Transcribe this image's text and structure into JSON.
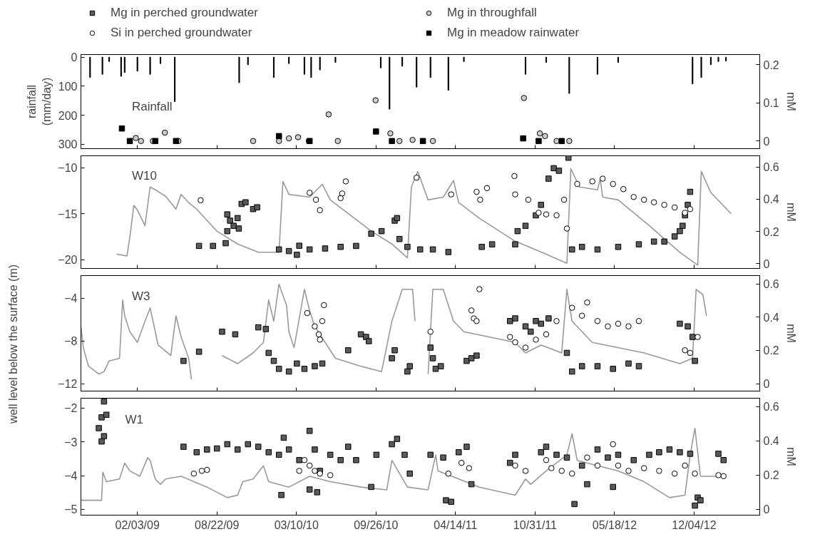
{
  "chart_data": [
    {
      "type": "bar",
      "ylabel": "rainfall\n(mm/day)",
      "y2label": "mM",
      "annotations": [
        "Rainfall"
      ],
      "legend": "top",
      "tick_labels": "y",
      "xlim": [
        "2008-09-14",
        "2013-05-18"
      ],
      "ylim": [
        315,
        -9
      ],
      "yticks": [
        0,
        100,
        200,
        300
      ],
      "y2lim": [
        -0.02,
        0.227
      ],
      "y2ticks": [
        0,
        0.1,
        0.2
      ],
      "xticks": [
        {
          "value": "2009-02-03",
          "label": null
        },
        {
          "value": "2009-08-22",
          "label": null
        },
        {
          "value": "2010-03-10",
          "label": null
        },
        {
          "value": "2010-09-26",
          "label": null
        },
        {
          "value": "2011-04-14",
          "label": null
        },
        {
          "value": "2011-10-31",
          "label": null
        },
        {
          "value": "2012-05-18",
          "label": null
        },
        {
          "value": "2012-12-04",
          "label": null
        }
      ],
      "series": [
        {
          "color": "#000000",
          "x": [
            "2008-10-07",
            "2008-11-07",
            "2008-11-24",
            "2008-12-24",
            "2009-01-02",
            "2009-02-03",
            "2009-03-07",
            "2009-04-02",
            "2009-05-08",
            "2009-10-17",
            "2009-11-08",
            "2010-01-12",
            "2010-02-19",
            "2010-03-30",
            "2010-04-16",
            "2010-05-08",
            "2010-06-16",
            "2010-10-08",
            "2010-10-30",
            "2010-12-01",
            "2011-01-06",
            "2011-02-10",
            "2011-03-27",
            "2011-05-05",
            "2011-10-07",
            "2011-11-28",
            "2012-01-25",
            "2012-04-05",
            "2012-05-27",
            "2012-11-30",
            "2012-12-22",
            "2013-01-15",
            "2013-02-03",
            "2013-02-22"
          ],
          "values": [
            70,
            59,
            15,
            66,
            53,
            48,
            59,
            22,
            153,
            88,
            26,
            70,
            22,
            59,
            70,
            44,
            18,
            37,
            179,
            31,
            103,
            70,
            114,
            15,
            59,
            18,
            125,
            59,
            18,
            92,
            70,
            26,
            15,
            13
          ]
        },
        {
          "type": "scatter",
          "name": "Mg in throughfall",
          "axis": "y2",
          "marker": "circle",
          "color": "#cccccc",
          "x": [
            "2009-01-30",
            "2009-02-12",
            "2009-03-14",
            "2009-04-13",
            "2009-05-17",
            "2009-11-21",
            "2010-01-25",
            "2010-02-19",
            "2010-03-14",
            "2010-04-10",
            "2010-05-30",
            "2010-06-22",
            "2010-09-25",
            "2010-11-01",
            "2010-11-24",
            "2010-12-27",
            "2011-02-16",
            "2011-10-03",
            "2011-11-12",
            "2011-11-25",
            "2011-12-24",
            "2012-01-25"
          ],
          "values": [
            0.008,
            0,
            0,
            0.022,
            0,
            0,
            0,
            0.007,
            0.01,
            0,
            0.07,
            0,
            0.107,
            0.02,
            0,
            0.003,
            0,
            0.113,
            0.02,
            0.013,
            0,
            0
          ]
        },
        {
          "type": "scatter",
          "name": "Mg in meadow rainwater",
          "axis": "y2",
          "marker": "square",
          "color": "#000000",
          "x": [
            "2008-12-26",
            "2009-01-15",
            "2009-03-20",
            "2009-05-11",
            "2010-01-25",
            "2010-04-12",
            "2010-09-26",
            "2010-11-05",
            "2011-01-22",
            "2011-10-01",
            "2011-11-09",
            "2012-01-06"
          ],
          "values": [
            0.033,
            0,
            0,
            0,
            0.013,
            0,
            0.025,
            0,
            0,
            0.007,
            0,
            0
          ]
        }
      ]
    },
    {
      "type": "line",
      "y2label": "mM",
      "annotations": [
        "W10"
      ],
      "legend": "top",
      "tick_labels": "y",
      "xlim": [
        "2008-09-14",
        "2013-05-18"
      ],
      "ylim": [
        -20.96,
        -8.7
      ],
      "yticks": [
        {
          "value": -20,
          "label": "−20"
        },
        {
          "value": -15,
          "label": "−15"
        },
        {
          "value": -10,
          "label": "−10"
        }
      ],
      "y2lim": [
        -0.03,
        0.67
      ],
      "y2ticks": [
        0,
        0.2,
        0.4,
        0.6
      ],
      "xticks": [
        {
          "value": "2009-02-03",
          "label": null
        },
        {
          "value": "2009-08-22",
          "label": null
        },
        {
          "value": "2010-03-10",
          "label": null
        },
        {
          "value": "2010-09-26",
          "label": null
        },
        {
          "value": "2011-04-14",
          "label": null
        },
        {
          "value": "2011-10-31",
          "label": null
        },
        {
          "value": "2012-05-18",
          "label": null
        },
        {
          "value": "2012-12-04",
          "label": null
        }
      ],
      "series": [
        {
          "color": "#999999",
          "x": [
            "2008-12-13",
            "2009-01-08",
            "2009-01-17",
            "2009-01-25",
            "2009-02-03",
            "2009-02-22",
            "2009-03-07",
            "2009-03-20",
            "2009-04-15",
            "2009-05-11",
            "2009-05-24",
            "2009-06-12",
            "2009-07-02",
            "2009-08-22",
            "2009-10-13",
            "2009-12-04",
            "2010-01-25",
            "2010-02-04",
            "2010-02-19",
            "2010-04-12",
            "2010-05-14",
            "2010-06-03",
            "2010-07-25",
            "2010-09-14",
            "2010-11-05",
            "2010-12-14",
            "2010-12-24",
            "2011-01-09",
            "2011-02-04",
            "2011-03-14",
            "2011-04-09",
            "2011-04-22",
            "2011-06-13",
            "2011-09-11",
            "2011-11-28",
            "2012-01-19",
            "2012-01-29",
            "2012-02-20",
            "2012-04-05",
            "2012-04-12",
            "2012-04-18",
            "2012-05-27",
            "2012-08-13",
            "2012-10-29",
            "2012-12-13",
            "2012-12-22",
            "2013-01-15",
            "2013-03-07"
          ],
          "values": [
            -19.4,
            -19.6,
            -16.9,
            -14.1,
            -14.6,
            -16.3,
            -12.1,
            -12.4,
            -13.1,
            -14.5,
            -12.9,
            -13.8,
            -14.5,
            -16.9,
            -18.3,
            -19.2,
            -19.2,
            -11.5,
            -12.9,
            -13.2,
            -11.8,
            -13.5,
            -15.2,
            -16.9,
            -18.3,
            -19.8,
            -12.1,
            -10.4,
            -13.5,
            -13.2,
            -11.4,
            -13.8,
            -15.5,
            -18.0,
            -19.4,
            -20.4,
            -10.1,
            -12.1,
            -12.4,
            -11.2,
            -13.2,
            -13.5,
            -16.3,
            -19.2,
            -20.6,
            -10.4,
            -12.7,
            -15.0
          ]
        },
        {
          "type": "scatter",
          "name": "Mg in perched groundwater",
          "axis": "y2",
          "marker": "square",
          "color": "#5a5a5a",
          "x": [
            "2009-07-08",
            "2009-08-12",
            "2009-09-13",
            "2009-09-17",
            "2009-09-17",
            "2009-09-24",
            "2009-10-03",
            "2009-10-13",
            "2009-10-16",
            "2009-10-23",
            "2009-11-02",
            "2009-11-21",
            "2009-12-01",
            "2010-01-25",
            "2010-02-19",
            "2010-03-11",
            "2010-03-17",
            "2010-04-12",
            "2010-05-21",
            "2010-06-29",
            "2010-08-07",
            "2010-09-14",
            "2010-10-10",
            "2010-11-12",
            "2010-11-18",
            "2010-11-24",
            "2010-12-14",
            "2011-01-15",
            "2011-02-16",
            "2011-03-27",
            "2011-06-19",
            "2011-07-15",
            "2011-09-11",
            "2011-09-17",
            "2011-10-07",
            "2011-11-02",
            "2011-11-15",
            "2011-12-04",
            "2011-12-17",
            "2011-12-30",
            "2012-01-23",
            "2012-02-01",
            "2012-02-26",
            "2012-04-05",
            "2012-05-27",
            "2012-07-18",
            "2012-08-25",
            "2012-09-20",
            "2012-10-16",
            "2012-10-29",
            "2012-11-05",
            "2012-11-11",
            "2012-11-18",
            "2012-11-24"
          ],
          "values": [
            0.11,
            0.11,
            0.127,
            0.306,
            0.202,
            0.267,
            0.235,
            0.283,
            0.218,
            0.371,
            0.381,
            0.339,
            0.35,
            0.088,
            0.078,
            0.055,
            0.111,
            0.088,
            0.094,
            0.104,
            0.11,
            0.186,
            0.202,
            0.267,
            0.283,
            0.153,
            0.104,
            0.088,
            0.088,
            0.072,
            0.104,
            0.12,
            0.12,
            0.202,
            0.235,
            0.3,
            0.365,
            0.528,
            0.593,
            0.577,
            0.658,
            0.088,
            0.104,
            0.088,
            0.104,
            0.12,
            0.137,
            0.137,
            0.169,
            0.202,
            0.235,
            0.3,
            0.365,
            0.446
          ]
        },
        {
          "type": "scatter",
          "name": "Si in perched groundwater",
          "axis": "y2",
          "marker": "circle",
          "color": "#ffffff",
          "x": [
            "2009-07-12",
            "2010-04-12",
            "2010-04-28",
            "2010-05-08",
            "2010-06-29",
            "2010-07-03",
            "2010-07-12",
            "2011-01-06",
            "2011-04-03",
            "2011-06-06",
            "2011-06-15",
            "2011-07-02",
            "2011-09-09",
            "2011-09-11",
            "2011-10-14",
            "2011-11-09",
            "2011-11-28",
            "2011-12-24",
            "2012-01-12",
            "2012-01-19",
            "2012-02-14",
            "2012-03-23",
            "2012-04-18",
            "2012-05-14",
            "2012-06-09",
            "2012-07-05",
            "2012-07-31",
            "2012-08-25",
            "2012-09-20",
            "2012-10-16",
            "2012-11-11",
            "2012-11-24"
          ],
          "values": [
            0.394,
            0.44,
            0.397,
            0.332,
            0.407,
            0.436,
            0.511,
            0.534,
            0.43,
            0.446,
            0.397,
            0.469,
            0.544,
            0.43,
            0.397,
            0.316,
            0.306,
            0.3,
            0.397,
            0.218,
            0.495,
            0.511,
            0.528,
            0.495,
            0.463,
            0.414,
            0.397,
            0.381,
            0.365,
            0.349,
            0.316,
            0.339
          ]
        }
      ]
    },
    {
      "type": "line",
      "ylabel": "well level below the surface (m)",
      "y2label": "mM",
      "annotations": [
        "W3"
      ],
      "tick_labels": "y",
      "xlim": [
        "2008-09-14",
        "2013-05-18"
      ],
      "ylim": [
        -12.7,
        -1.86
      ],
      "yticks": [
        {
          "value": -12,
          "label": "−12"
        },
        {
          "value": -8,
          "label": "−8"
        },
        {
          "value": -4,
          "label": "−4"
        }
      ],
      "y2lim": [
        -0.045,
        0.651
      ],
      "y2ticks": [
        0,
        0.2,
        0.4,
        0.6
      ],
      "xticks": [
        {
          "value": "2009-02-03",
          "label": null
        },
        {
          "value": "2009-08-22",
          "label": null
        },
        {
          "value": "2010-03-10",
          "label": null
        },
        {
          "value": "2010-09-26",
          "label": null
        },
        {
          "value": "2011-04-14",
          "label": null
        },
        {
          "value": "2011-10-31",
          "label": null
        },
        {
          "value": "2012-05-18",
          "label": null
        },
        {
          "value": "2012-12-04",
          "label": null
        }
      ],
      "series": [
        {
          "color": "#999999",
          "x": [
            "2008-09-14",
            "2008-09-20",
            "2008-10-03",
            "2008-10-29",
            "2008-11-11",
            "2008-11-24",
            "2008-12-20",
            "2008-12-28",
            "2009-01-02",
            "2009-01-15",
            "2009-02-03",
            "2009-02-22",
            "2009-03-07",
            "2009-03-20",
            "2009-03-27",
            "2009-04-28",
            "2009-05-11",
            "2009-05-24",
            "2009-06-12",
            "2009-06-19",
            "2009-08-01",
            "2009-09-04",
            "2009-10-13",
            "2009-11-21",
            "2009-12-17",
            "2009-12-30",
            "2010-01-12",
            "2010-01-25",
            "2010-02-13",
            "2010-02-19",
            "2010-03-04",
            "2010-03-30",
            "2010-04-12",
            "2010-04-25",
            "2010-06-16",
            "2010-08-19",
            "2010-10-10",
            "2010-11-05",
            "2010-12-01",
            "2010-12-27",
            "2011-01-02",
            "2011-01-20",
            "2011-02-04",
            "2011-02-16",
            "2011-03-14",
            "2011-04-09",
            "2011-05-05",
            "2011-07-09",
            "2011-09-11",
            "2011-10-07",
            "2011-11-15",
            "2012-01-06",
            "2012-01-19",
            "2012-02-01",
            "2012-03-23",
            "2012-07-31",
            "2012-10-29",
            "2012-11-30",
            "2012-12-09",
            "2012-12-26",
            "2013-01-04"
          ],
          "values": [
            -6.64,
            -8.63,
            -10.37,
            -11.11,
            -10.87,
            -9.87,
            -9.62,
            -4.15,
            -5.64,
            -7.13,
            -8.13,
            -6.14,
            -4.9,
            -7.13,
            -8.38,
            -9.37,
            -5.64,
            -7.63,
            -9.62,
            -11.61,
            null,
            -9.37,
            -10.12,
            -9.12,
            -8.13,
            -4.15,
            -6.14,
            -2.66,
            -4.65,
            -7.13,
            -8.63,
            -3.15,
            -5.14,
            -6.64,
            -9.62,
            -10.37,
            -10.87,
            -6.14,
            -3.15,
            -3.15,
            -6.14,
            null,
            -11.11,
            -3.15,
            -3.15,
            -6.14,
            -7.13,
            -7.63,
            -8.13,
            -9.12,
            -8.38,
            -9.12,
            -3.15,
            -6.14,
            -8.13,
            -9.12,
            -10.12,
            -9.62,
            -3.15,
            -3.65,
            -5.64
          ]
        },
        {
          "type": "scatter",
          "axis": "y2",
          "marker": "square",
          "color": "#5a5a5a",
          "x": [
            "2009-05-30",
            "2009-07-08",
            "2009-09-04",
            "2009-10-07",
            "2009-12-04",
            "2009-12-23",
            "2009-12-30",
            "2010-01-12",
            "2010-01-25",
            "2010-02-19",
            "2010-03-11",
            "2010-03-30",
            "2010-04-25",
            "2010-05-14",
            "2010-07-18",
            "2010-08-19",
            "2010-09-01",
            "2010-09-08",
            "2010-11-05",
            "2010-11-12",
            "2010-12-14",
            "2010-12-20",
            "2011-02-10",
            "2011-02-16",
            "2011-02-23",
            "2011-03-08",
            "2011-05-12",
            "2011-05-24",
            "2011-06-06",
            "2011-08-29",
            "2011-09-11",
            "2011-10-07",
            "2011-10-20",
            "2011-11-02",
            "2011-11-15",
            "2011-12-04",
            "2012-01-19",
            "2012-02-01",
            "2012-02-26",
            "2012-04-05",
            "2012-05-14",
            "2012-06-22",
            "2012-07-18",
            "2012-10-29",
            "2012-11-18",
            "2012-11-30",
            "2012-12-06"
          ],
          "values": [
            0.137,
            0.192,
            0.313,
            0.297,
            0.339,
            0.329,
            0.185,
            0.137,
            0.089,
            0.073,
            0.121,
            0.089,
            0.105,
            0.121,
            0.201,
            0.297,
            0.281,
            0.256,
            0.153,
            0.201,
            0.073,
            0.105,
            0.217,
            0.153,
            0.089,
            0.105,
            0.137,
            0.153,
            0.169,
            0.377,
            0.393,
            0.345,
            0.313,
            0.377,
            0.361,
            0.393,
            0.185,
            0.073,
            0.105,
            0.105,
            0.089,
            0.121,
            0.105,
            0.361,
            0.345,
            0.281,
            0.137
          ]
        },
        {
          "type": "scatter",
          "axis": "y2",
          "marker": "circle",
          "color": "#ffffff",
          "x": [
            "2010-04-06",
            "2010-04-25",
            "2010-05-05",
            "2010-05-08",
            "2010-05-14",
            "2010-05-18",
            "2011-02-10",
            "2011-05-24",
            "2011-05-30",
            "2011-06-06",
            "2011-06-13",
            "2011-08-29",
            "2011-09-11",
            "2011-10-07",
            "2011-11-02",
            "2011-11-28",
            "2011-12-24",
            "2012-02-01",
            "2012-02-26",
            "2012-03-10",
            "2012-04-05",
            "2012-05-01",
            "2012-05-27",
            "2012-06-22",
            "2012-07-18",
            "2012-11-11",
            "2012-11-24",
            "2012-12-13"
          ],
          "values": [
            0.425,
            0.345,
            0.297,
            0.265,
            0.377,
            0.473,
            0.313,
            0.441,
            0.393,
            0.377,
            0.569,
            0.281,
            0.249,
            0.217,
            0.265,
            0.297,
            0.377,
            0.457,
            0.409,
            0.489,
            0.377,
            0.345,
            0.361,
            0.345,
            0.377,
            0.201,
            0.185,
            0.281
          ]
        }
      ]
    },
    {
      "type": "line",
      "y2label": "mM",
      "annotations": [
        "W1"
      ],
      "xlim": [
        "2008-09-14",
        "2013-05-18"
      ],
      "ylim": [
        -5.17,
        -1.71
      ],
      "yticks": [
        {
          "value": -5,
          "label": "−5"
        },
        {
          "value": -4,
          "label": "−4"
        },
        {
          "value": -3,
          "label": "−3"
        },
        {
          "value": -2,
          "label": "−2"
        }
      ],
      "y2lim": [
        -0.034,
        0.65
      ],
      "y2ticks": [
        0,
        0.2,
        0.4,
        0.6
      ],
      "xticks": [
        {
          "value": "2009-02-03",
          "label": "02/03/09"
        },
        {
          "value": "2009-08-22",
          "label": "08/22/09"
        },
        {
          "value": "2010-03-10",
          "label": "03/10/10"
        },
        {
          "value": "2010-09-26",
          "label": "09/26/10"
        },
        {
          "value": "2011-04-14",
          "label": "04/14/11"
        },
        {
          "value": "2011-10-31",
          "label": "10/31/11"
        },
        {
          "value": "2012-05-18",
          "label": "05/18/12"
        },
        {
          "value": "2012-12-04",
          "label": "12/04/12"
        }
      ],
      "series": [
        {
          "color": "#999999",
          "x": [
            "2008-09-14",
            "2008-11-05",
            "2008-11-08",
            "2008-11-17",
            "2008-12-20",
            "2009-01-02",
            "2009-01-15",
            "2009-02-09",
            "2009-03-01",
            "2009-03-07",
            "2009-03-20",
            "2009-04-02",
            "2009-04-15",
            "2009-05-24",
            "2009-07-28",
            "2009-09-17",
            "2009-10-13",
            "2009-10-26",
            "2009-11-21",
            "2009-12-17",
            "2009-12-30",
            "2010-02-19",
            "2010-04-12",
            "2010-06-03",
            "2010-08-19",
            "2010-10-23",
            "2010-11-05",
            "2010-12-14",
            "2011-02-04",
            "2011-02-23",
            "2011-03-01",
            "2011-04-22",
            "2011-06-13",
            "2011-09-11",
            "2011-10-07",
            "2011-10-20",
            "2011-11-28",
            "2012-01-19",
            "2012-02-01",
            "2012-02-14",
            "2012-05-27",
            "2012-07-31",
            "2012-10-03",
            "2012-11-11",
            "2012-11-24",
            "2012-12-06",
            "2012-12-20",
            "2013-02-10"
          ],
          "values": [
            -4.73,
            -4.73,
            -3.9,
            -4.18,
            -4.1,
            -3.63,
            -3.86,
            -4.02,
            -3.47,
            -3.55,
            -4.1,
            -4.26,
            -4.1,
            -4.02,
            -4.34,
            -4.65,
            -4.58,
            -4.18,
            -4.1,
            -3.71,
            -4.18,
            -4.34,
            -4.02,
            -4.18,
            -4.34,
            -4.42,
            -3.55,
            -4.34,
            -4.42,
            -3.39,
            -3.86,
            -4.1,
            -4.34,
            -4.58,
            -4.1,
            -4.26,
            -3.86,
            -3.39,
            -2.76,
            -3.55,
            -3.86,
            -4.18,
            -4.65,
            -4.58,
            -3.39,
            -2.6,
            -4.02,
            -4.02
          ]
        },
        {
          "type": "scatter",
          "axis": "y2",
          "marker": "square",
          "color": "#5a5a5a",
          "x": [
            "2008-10-29",
            "2008-11-05",
            "2008-11-05",
            "2008-11-11",
            "2008-11-11",
            "2008-11-17",
            "2009-05-30",
            "2009-07-02",
            "2009-07-28",
            "2009-08-22",
            "2009-09-17",
            "2009-10-13",
            "2009-11-08",
            "2009-12-04",
            "2009-12-30",
            "2010-01-25",
            "2010-01-31",
            "2010-02-06",
            "2010-02-19",
            "2010-03-17",
            "2010-04-12",
            "2010-04-12",
            "2010-04-25",
            "2010-05-01",
            "2010-05-08",
            "2010-06-03",
            "2010-06-29",
            "2010-07-18",
            "2010-08-07",
            "2010-09-14",
            "2010-09-27",
            "2010-11-05",
            "2010-11-18",
            "2010-12-07",
            "2010-12-20",
            "2011-02-10",
            "2011-03-14",
            "2011-03-21",
            "2011-04-03",
            "2011-04-22",
            "2011-05-12",
            "2011-05-24",
            "2011-08-29",
            "2011-09-11",
            "2011-11-15",
            "2011-11-28",
            "2011-12-24",
            "2012-01-19",
            "2012-02-07",
            "2012-02-26",
            "2012-03-10",
            "2012-04-05",
            "2012-05-01",
            "2012-05-14",
            "2012-05-27",
            "2012-07-05",
            "2012-08-13",
            "2012-09-07",
            "2012-10-03",
            "2012-10-29",
            "2012-11-24",
            "2012-12-06",
            "2012-12-13",
            "2012-12-20",
            "2013-02-03",
            "2013-02-16"
          ],
          "values": [
            0.475,
            0.538,
            0.397,
            0.631,
            0.428,
            0.553,
            0.366,
            0.334,
            0.35,
            0.356,
            0.381,
            0.35,
            0.381,
            0.366,
            0.334,
            0.319,
            0.084,
            0.419,
            0.35,
            0.288,
            0.459,
            0.116,
            0.35,
            0.1,
            0.225,
            0.319,
            0.288,
            0.366,
            0.288,
            0.131,
            0.319,
            0.381,
            0.412,
            0.319,
            0.209,
            0.319,
            0.303,
            0.053,
            0.044,
            0.334,
            0.366,
            0.147,
            0.272,
            0.319,
            0.334,
            0.366,
            0.319,
            0.303,
            0.031,
            0.256,
            0.147,
            0.35,
            0.303,
            0.131,
            0.319,
            0.288,
            0.319,
            0.334,
            0.35,
            0.334,
            0.325,
            0.022,
            0.069,
            0.053,
            0.325,
            0.288
          ]
        },
        {
          "type": "scatter",
          "axis": "y2",
          "marker": "circle",
          "color": "#ffffff",
          "x": [
            "2009-06-25",
            "2009-07-15",
            "2009-07-28",
            "2010-03-17",
            "2010-03-30",
            "2010-04-12",
            "2010-04-25",
            "2010-05-08",
            "2010-06-03",
            "2011-03-27",
            "2011-04-29",
            "2011-05-18",
            "2011-09-11",
            "2011-10-07",
            "2011-11-28",
            "2011-12-11",
            "2012-01-06",
            "2012-02-01",
            "2012-03-10",
            "2012-04-05",
            "2012-05-14",
            "2012-05-27",
            "2012-06-22",
            "2012-07-31",
            "2012-09-07",
            "2012-10-16",
            "2012-11-11",
            "2012-12-06",
            "2013-02-03",
            "2013-02-16"
          ],
          "values": [
            0.209,
            0.225,
            0.231,
            0.225,
            0.288,
            0.256,
            0.225,
            0.209,
            0.2,
            0.209,
            0.272,
            0.241,
            0.256,
            0.225,
            0.288,
            0.241,
            0.225,
            0.209,
            0.303,
            0.256,
            0.381,
            0.256,
            0.225,
            0.241,
            0.225,
            0.209,
            0.256,
            0.209,
            0.2,
            0.194
          ]
        }
      ]
    }
  ]
}
